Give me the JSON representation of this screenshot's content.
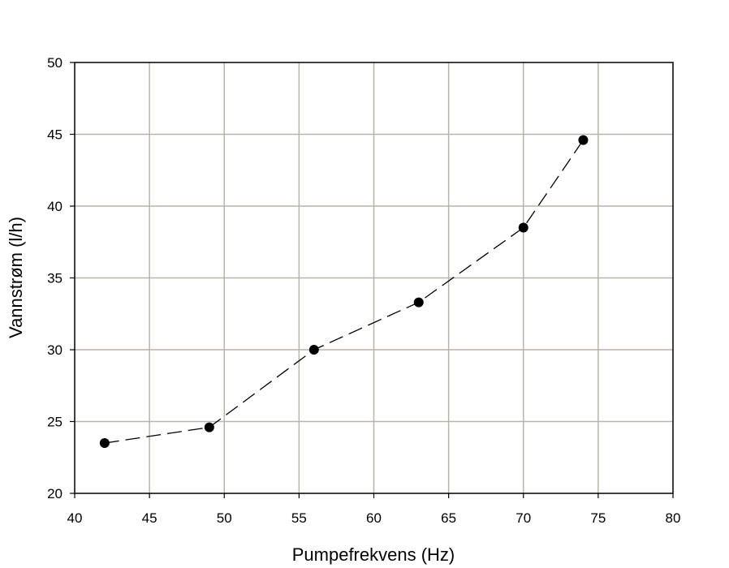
{
  "chart_data": {
    "type": "line",
    "title": "",
    "xlabel": "Pumpefrekvens (Hz)",
    "ylabel": "Vannstrøm (l/h)",
    "xlim": [
      40,
      80
    ],
    "ylim": [
      20,
      50
    ],
    "xticks": [
      "40",
      "45",
      "50",
      "55",
      "60",
      "65",
      "70",
      "75",
      "80"
    ],
    "yticks": [
      "20",
      "25",
      "30",
      "35",
      "40",
      "45",
      "50"
    ],
    "grid": true,
    "series": [
      {
        "x": [
          42,
          49,
          56,
          63,
          70,
          74
        ],
        "y": [
          23.5,
          24.6,
          30.0,
          33.3,
          38.5,
          44.6
        ],
        "line_style": "dashed",
        "marker": "circle",
        "color": "#000000"
      }
    ],
    "grid_color": "#b8b4aa"
  }
}
